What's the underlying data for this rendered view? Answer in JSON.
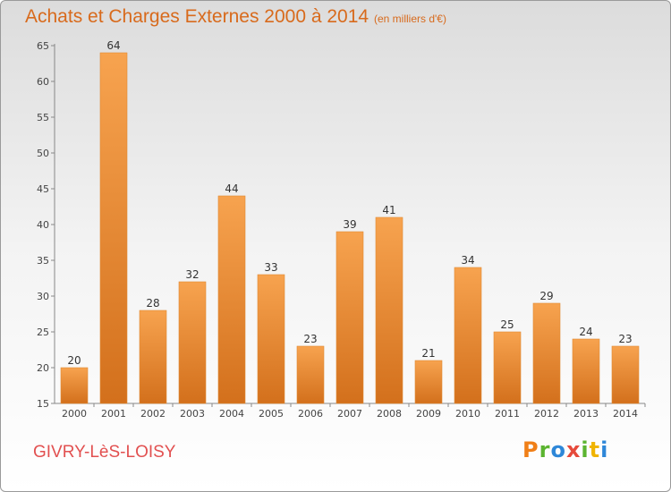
{
  "header": {
    "title": "Achats et Charges Externes 2000 à 2014",
    "unit": "(en milliers d'€)"
  },
  "footer": {
    "place": "GIVRY-LèS-LOISY",
    "logo": [
      "P",
      "r",
      "o",
      "x",
      "i",
      "t",
      "i"
    ],
    "logo_colors": [
      "#f07f17",
      "#5bb430",
      "#2e87d8",
      "#e64a3b",
      "#5bb430",
      "#f0b400",
      "#2e87d8"
    ]
  },
  "chart_data": {
    "type": "bar",
    "title": "Achats et Charges Externes 2000 à 2014",
    "subtitle": "(en milliers d'€)",
    "categories": [
      "2000",
      "2001",
      "2002",
      "2003",
      "2004",
      "2005",
      "2006",
      "2007",
      "2008",
      "2009",
      "2010",
      "2011",
      "2012",
      "2013",
      "2014"
    ],
    "values": [
      20,
      64,
      28,
      32,
      44,
      33,
      23,
      39,
      41,
      21,
      34,
      25,
      29,
      24,
      23
    ],
    "ylim": [
      15,
      65
    ],
    "yticks": [
      15,
      20,
      25,
      30,
      35,
      40,
      45,
      50,
      55,
      60,
      65
    ],
    "grid": false,
    "colors": {
      "bar_top": "#f7a34f",
      "bar_bottom": "#d3701c",
      "bar_edge": "#e08a35",
      "axis": "#888888"
    }
  }
}
